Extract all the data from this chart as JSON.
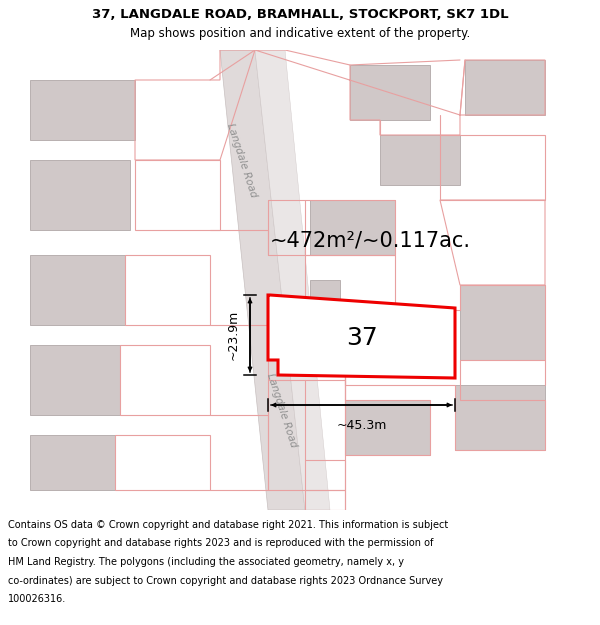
{
  "title_line1": "37, LANGDALE ROAD, BRAMHALL, STOCKPORT, SK7 1DL",
  "title_line2": "Map shows position and indicative extent of the property.",
  "area_text": "~472m²/~0.117ac.",
  "label_37": "37",
  "dim_width": "~45.3m",
  "dim_height": "~23.9m",
  "road_label": "Langdale Road",
  "footer_lines": [
    "Contains OS data © Crown copyright and database right 2021. This information is subject",
    "to Crown copyright and database rights 2023 and is reproduced with the permission of",
    "HM Land Registry. The polygons (including the associated geometry, namely x, y",
    "co-ordinates) are subject to Crown copyright and database rights 2023 Ordnance Survey",
    "100026316."
  ],
  "map_bg": "#f7f3f3",
  "building_fill": "#d0c8c8",
  "building_edge": "#b8b0b0",
  "pink_color": "#e8a0a0",
  "red_color": "#ee0000",
  "road_fill": "#ece8e8",
  "road_edge": "#d0c8c8",
  "road_label_color": "#909090",
  "title_fs": 9.5,
  "subtitle_fs": 8.5,
  "area_fs": 15,
  "label_fs": 18,
  "dim_fs": 9,
  "footer_fs": 7.0,
  "road_label_fs": 7.5
}
